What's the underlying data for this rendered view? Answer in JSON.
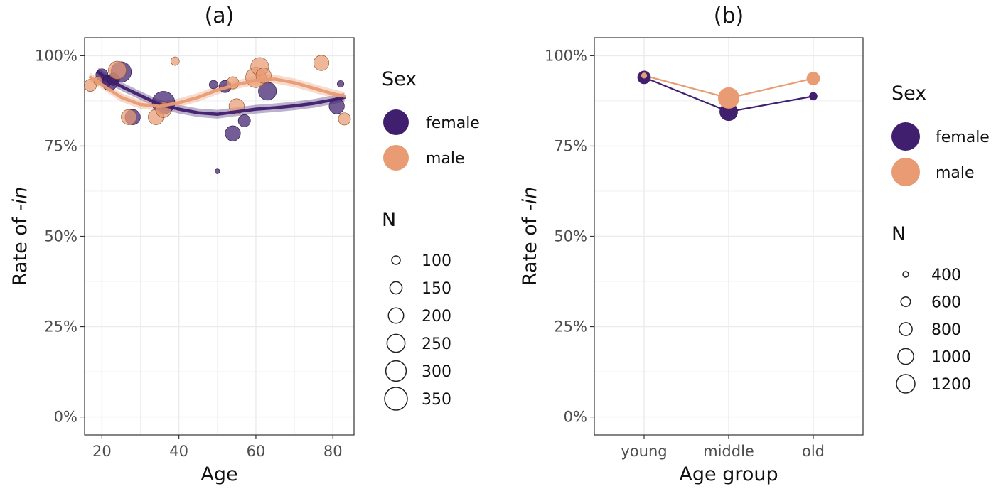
{
  "colors": {
    "female": "#3f1f6e",
    "male": "#e99b73",
    "grid": "#ebebeb",
    "border": "#333333"
  },
  "chart_data": [
    {
      "id": "a",
      "type": "scatter",
      "title": "(a)",
      "xlabel": "Age",
      "ylabel_prefix": "Rate of ",
      "ylabel_italic": "-in",
      "xlim": [
        15.5,
        85.5
      ],
      "ylim": [
        -0.05,
        1.05
      ],
      "xticks": [
        20,
        40,
        60,
        80
      ],
      "xtick_labels": [
        "20",
        "40",
        "60",
        "80"
      ],
      "yticks": [
        0,
        0.25,
        0.5,
        0.75,
        1.0
      ],
      "ytick_labels": [
        "0%",
        "25%",
        "50%",
        "75%",
        "100%"
      ],
      "grid": true,
      "series": [
        {
          "name": "female",
          "points": [
            {
              "x": 20,
              "y": 0.947,
              "n": 150
            },
            {
              "x": 21,
              "y": 0.93,
              "n": 150
            },
            {
              "x": 22,
              "y": 0.925,
              "n": 200
            },
            {
              "x": 23,
              "y": 0.935,
              "n": 150
            },
            {
              "x": 25,
              "y": 0.955,
              "n": 300
            },
            {
              "x": 28,
              "y": 0.83,
              "n": 200
            },
            {
              "x": 36,
              "y": 0.87,
              "n": 350
            },
            {
              "x": 49,
              "y": 0.92,
              "n": 100
            },
            {
              "x": 50,
              "y": 0.68,
              "n": 60
            },
            {
              "x": 52,
              "y": 0.915,
              "n": 150
            },
            {
              "x": 54,
              "y": 0.785,
              "n": 200
            },
            {
              "x": 57,
              "y": 0.82,
              "n": 150
            },
            {
              "x": 63,
              "y": 0.902,
              "n": 250
            },
            {
              "x": 81,
              "y": 0.86,
              "n": 200
            },
            {
              "x": 82,
              "y": 0.922,
              "n": 80
            }
          ],
          "smooth": [
            {
              "x": 19,
              "y": 0.955
            },
            {
              "x": 22,
              "y": 0.932
            },
            {
              "x": 26,
              "y": 0.91
            },
            {
              "x": 30,
              "y": 0.89
            },
            {
              "x": 35,
              "y": 0.865
            },
            {
              "x": 40,
              "y": 0.852
            },
            {
              "x": 45,
              "y": 0.842
            },
            {
              "x": 50,
              "y": 0.838
            },
            {
              "x": 55,
              "y": 0.845
            },
            {
              "x": 60,
              "y": 0.852
            },
            {
              "x": 65,
              "y": 0.856
            },
            {
              "x": 70,
              "y": 0.861
            },
            {
              "x": 75,
              "y": 0.868
            },
            {
              "x": 80,
              "y": 0.878
            },
            {
              "x": 83,
              "y": 0.885
            }
          ]
        },
        {
          "name": "male",
          "points": [
            {
              "x": 17,
              "y": 0.918,
              "n": 150
            },
            {
              "x": 19,
              "y": 0.93,
              "n": 100
            },
            {
              "x": 24,
              "y": 0.96,
              "n": 250
            },
            {
              "x": 27,
              "y": 0.83,
              "n": 200
            },
            {
              "x": 34,
              "y": 0.83,
              "n": 200
            },
            {
              "x": 36,
              "y": 0.85,
              "n": 200
            },
            {
              "x": 39,
              "y": 0.985,
              "n": 100
            },
            {
              "x": 54,
              "y": 0.925,
              "n": 150
            },
            {
              "x": 55,
              "y": 0.86,
              "n": 200
            },
            {
              "x": 60,
              "y": 0.94,
              "n": 300
            },
            {
              "x": 61,
              "y": 0.97,
              "n": 250
            },
            {
              "x": 62,
              "y": 0.945,
              "n": 200
            },
            {
              "x": 77,
              "y": 0.98,
              "n": 200
            },
            {
              "x": 83,
              "y": 0.825,
              "n": 150
            }
          ],
          "smooth": [
            {
              "x": 17,
              "y": 0.94
            },
            {
              "x": 20,
              "y": 0.92
            },
            {
              "x": 25,
              "y": 0.885
            },
            {
              "x": 30,
              "y": 0.865
            },
            {
              "x": 35,
              "y": 0.86
            },
            {
              "x": 40,
              "y": 0.87
            },
            {
              "x": 45,
              "y": 0.885
            },
            {
              "x": 50,
              "y": 0.905
            },
            {
              "x": 55,
              "y": 0.92
            },
            {
              "x": 60,
              "y": 0.932
            },
            {
              "x": 65,
              "y": 0.935
            },
            {
              "x": 70,
              "y": 0.925
            },
            {
              "x": 75,
              "y": 0.91
            },
            {
              "x": 80,
              "y": 0.895
            },
            {
              "x": 83,
              "y": 0.888
            }
          ]
        }
      ],
      "size_range": [
        100,
        350
      ],
      "legend_sex": {
        "title": "Sex",
        "items": [
          "female",
          "male"
        ]
      },
      "legend_n": {
        "title": "N",
        "items": [
          100,
          150,
          200,
          250,
          300,
          350
        ]
      },
      "legend_position": "right"
    },
    {
      "id": "b",
      "type": "line",
      "title": "(b)",
      "xlabel": "Age group",
      "ylabel_prefix": "Rate of ",
      "ylabel_italic": "-in",
      "categories": [
        "young",
        "middle",
        "old"
      ],
      "ylim": [
        -0.05,
        1.05
      ],
      "yticks": [
        0,
        0.25,
        0.5,
        0.75,
        1.0
      ],
      "ytick_labels": [
        "0%",
        "25%",
        "50%",
        "75%",
        "100%"
      ],
      "grid": true,
      "series": [
        {
          "name": "female",
          "values": [
            0.94,
            0.845,
            0.888
          ],
          "n": [
            700,
            1000,
            450
          ]
        },
        {
          "name": "male",
          "values": [
            0.945,
            0.883,
            0.937
          ],
          "n": [
            350,
            1200,
            700
          ]
        }
      ],
      "size_range": [
        400,
        1200
      ],
      "legend_sex": {
        "title": "Sex",
        "items": [
          "female",
          "male"
        ]
      },
      "legend_n": {
        "title": "N",
        "items": [
          400,
          600,
          800,
          1000,
          1200
        ]
      },
      "legend_position": "right"
    }
  ]
}
